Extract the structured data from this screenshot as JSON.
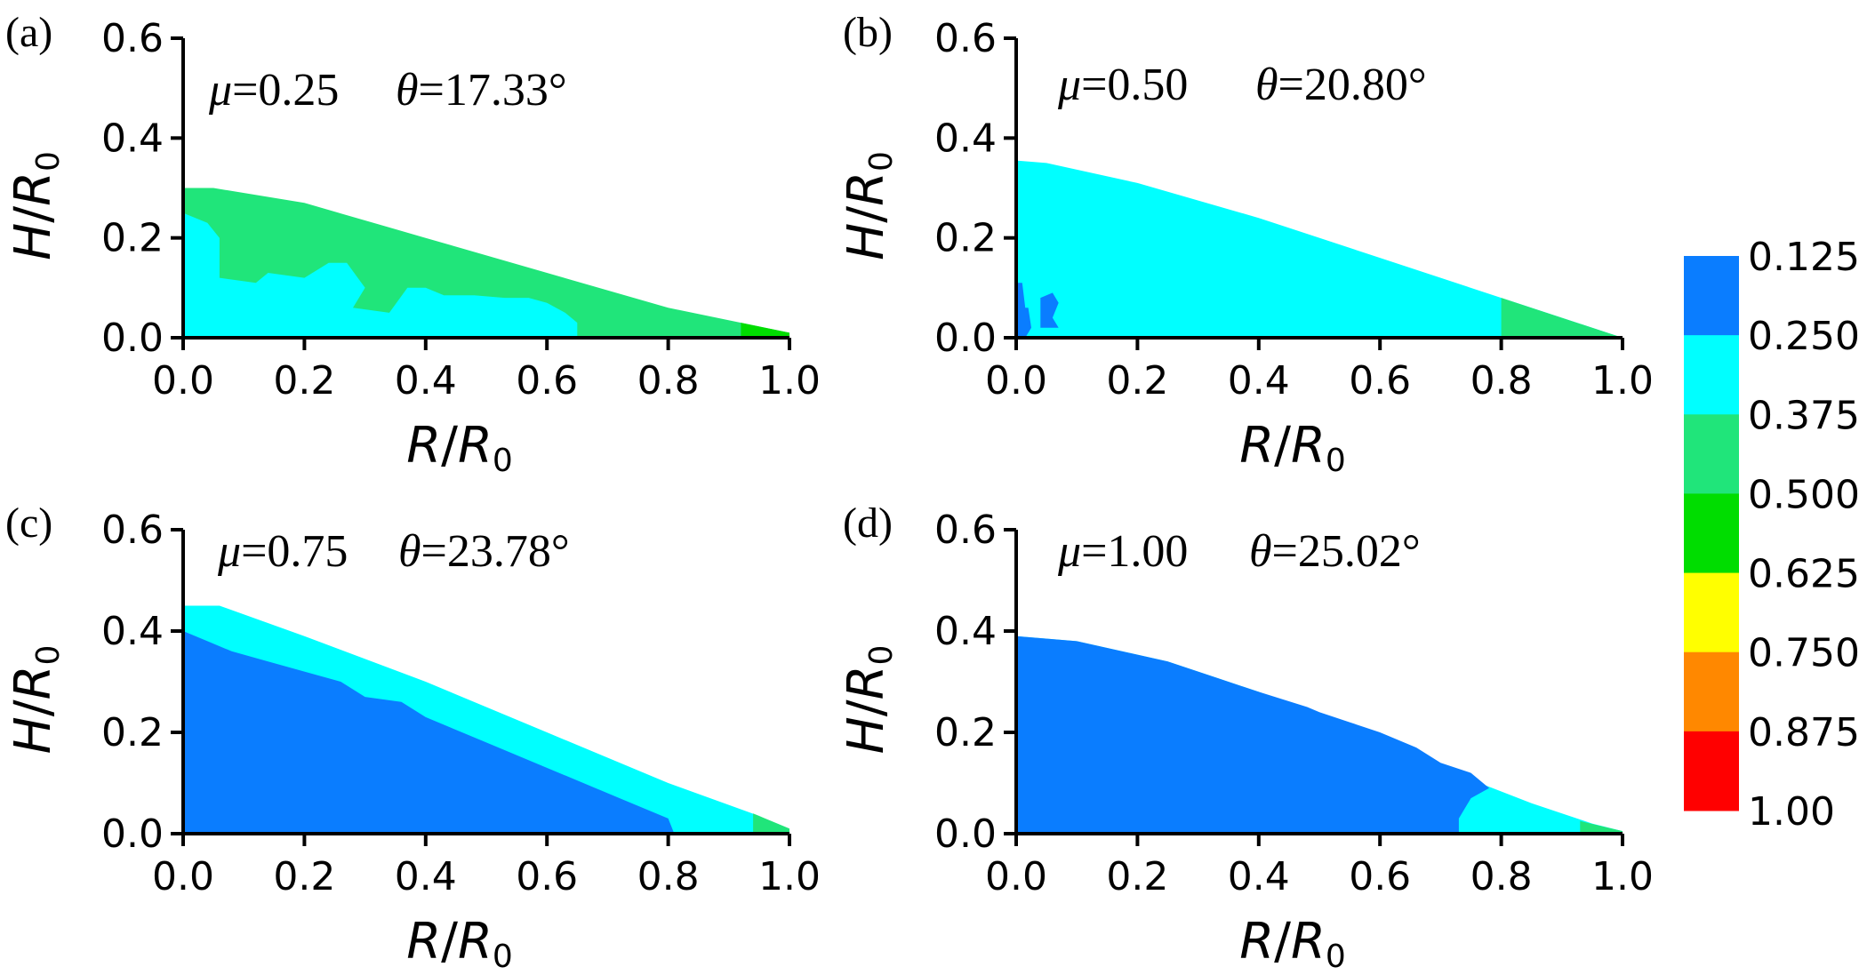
{
  "chart_data": [
    {
      "type": "area",
      "panel_label": "(a)",
      "mu_text": "μ=0.25",
      "theta_text": "θ=17.33°",
      "xlabel": "R/R0",
      "ylabel": "H/R0",
      "xlim": [
        0,
        1.0
      ],
      "ylim": [
        0,
        0.6
      ],
      "x_ticks": [
        "0.0",
        "0.2",
        "0.4",
        "0.6",
        "0.8",
        "1.0"
      ],
      "y_ticks": [
        "0.0",
        "0.2",
        "0.4",
        "0.6"
      ],
      "regions": [
        {
          "color": "#20e57a",
          "points": [
            [
              0,
              0
            ],
            [
              0,
              0.3
            ],
            [
              0.05,
              0.3
            ],
            [
              0.2,
              0.27
            ],
            [
              0.4,
              0.2
            ],
            [
              0.6,
              0.13
            ],
            [
              0.8,
              0.06
            ],
            [
              0.92,
              0.03
            ],
            [
              1.0,
              0.01
            ],
            [
              1.0,
              0
            ]
          ]
        },
        {
          "color": "#00ffff",
          "points": [
            [
              0,
              0
            ],
            [
              0,
              0.25
            ],
            [
              0.04,
              0.23
            ],
            [
              0.06,
              0.2
            ],
            [
              0.06,
              0.12
            ],
            [
              0.12,
              0.11
            ],
            [
              0.14,
              0.13
            ],
            [
              0.2,
              0.12
            ],
            [
              0.24,
              0.15
            ],
            [
              0.27,
              0.15
            ],
            [
              0.3,
              0.1
            ],
            [
              0.28,
              0.06
            ],
            [
              0.34,
              0.05
            ],
            [
              0.37,
              0.1
            ],
            [
              0.4,
              0.1
            ],
            [
              0.43,
              0.085
            ],
            [
              0.48,
              0.085
            ],
            [
              0.53,
              0.08
            ],
            [
              0.57,
              0.08
            ],
            [
              0.6,
              0.07
            ],
            [
              0.63,
              0.05
            ],
            [
              0.65,
              0.03
            ],
            [
              0.65,
              0
            ]
          ]
        },
        {
          "color": "#00dd00",
          "points": [
            [
              0.92,
              0
            ],
            [
              0.92,
              0.03
            ],
            [
              1.0,
              0.01
            ],
            [
              1.0,
              0
            ]
          ]
        }
      ]
    },
    {
      "type": "area",
      "panel_label": "(b)",
      "mu_text": "μ=0.50",
      "theta_text": "θ=20.80°",
      "xlabel": "R/R0",
      "ylabel": "H/R0",
      "xlim": [
        0,
        1.0
      ],
      "ylim": [
        0,
        0.6
      ],
      "x_ticks": [
        "0.0",
        "0.2",
        "0.4",
        "0.6",
        "0.8",
        "1.0"
      ],
      "y_ticks": [
        "0.0",
        "0.2",
        "0.4",
        "0.6"
      ],
      "regions": [
        {
          "color": "#00ffff",
          "points": [
            [
              0,
              0
            ],
            [
              0,
              0.355
            ],
            [
              0.05,
              0.35
            ],
            [
              0.2,
              0.31
            ],
            [
              0.4,
              0.24
            ],
            [
              0.6,
              0.16
            ],
            [
              0.8,
              0.08
            ],
            [
              0.95,
              0.02
            ],
            [
              1.0,
              0
            ]
          ]
        },
        {
          "color": "#20e57a",
          "points": [
            [
              0.7,
              0.12
            ],
            [
              0.8,
              0.08
            ],
            [
              0.95,
              0.02
            ],
            [
              1.0,
              0
            ],
            [
              0.8,
              0
            ],
            [
              0.8,
              0.08
            ]
          ]
        },
        {
          "color": "#0a7dff",
          "points": [
            [
              0.0,
              0.0
            ],
            [
              0.0,
              0.11
            ],
            [
              0.01,
              0.11
            ],
            [
              0.015,
              0.06
            ],
            [
              0.02,
              0.06
            ],
            [
              0.025,
              0.02
            ],
            [
              0.015,
              0.0
            ]
          ]
        },
        {
          "color": "#0a7dff",
          "points": [
            [
              0.04,
              0.02
            ],
            [
              0.04,
              0.08
            ],
            [
              0.06,
              0.09
            ],
            [
              0.07,
              0.07
            ],
            [
              0.06,
              0.04
            ],
            [
              0.07,
              0.02
            ]
          ]
        }
      ]
    },
    {
      "type": "area",
      "panel_label": "(c)",
      "mu_text": "μ=0.75",
      "theta_text": "θ=23.78°",
      "xlabel": "R/R0",
      "ylabel": "H/R0",
      "xlim": [
        0,
        1.0
      ],
      "ylim": [
        0,
        0.6
      ],
      "x_ticks": [
        "0.0",
        "0.2",
        "0.4",
        "0.6",
        "0.8",
        "1.0"
      ],
      "y_ticks": [
        "0.0",
        "0.2",
        "0.4",
        "0.6"
      ],
      "regions": [
        {
          "color": "#00ffff",
          "points": [
            [
              0,
              0
            ],
            [
              0,
              0.45
            ],
            [
              0.06,
              0.45
            ],
            [
              0.2,
              0.39
            ],
            [
              0.4,
              0.3
            ],
            [
              0.6,
              0.2
            ],
            [
              0.8,
              0.1
            ],
            [
              0.95,
              0.035
            ],
            [
              1.0,
              0.005
            ],
            [
              1.0,
              0
            ]
          ]
        },
        {
          "color": "#0a7dff",
          "points": [
            [
              0,
              0
            ],
            [
              0,
              0.4
            ],
            [
              0.04,
              0.38
            ],
            [
              0.08,
              0.36
            ],
            [
              0.14,
              0.34
            ],
            [
              0.2,
              0.32
            ],
            [
              0.26,
              0.3
            ],
            [
              0.3,
              0.27
            ],
            [
              0.36,
              0.26
            ],
            [
              0.4,
              0.23
            ],
            [
              0.46,
              0.2
            ],
            [
              0.5,
              0.18
            ],
            [
              0.56,
              0.15
            ],
            [
              0.62,
              0.12
            ],
            [
              0.68,
              0.09
            ],
            [
              0.72,
              0.07
            ],
            [
              0.76,
              0.05
            ],
            [
              0.8,
              0.03
            ],
            [
              0.81,
              0
            ]
          ]
        },
        {
          "color": "#20e57a",
          "points": [
            [
              0.94,
              0
            ],
            [
              0.94,
              0.04
            ],
            [
              1.0,
              0.01
            ],
            [
              1.0,
              0
            ]
          ]
        }
      ]
    },
    {
      "type": "area",
      "panel_label": "(d)",
      "mu_text": "μ=1.00",
      "theta_text": "θ=25.02°",
      "xlabel": "R/R0",
      "ylabel": "H/R0",
      "xlim": [
        0,
        1.0
      ],
      "ylim": [
        0,
        0.6
      ],
      "x_ticks": [
        "0.0",
        "0.2",
        "0.4",
        "0.6",
        "0.8",
        "1.0"
      ],
      "y_ticks": [
        "0.0",
        "0.2",
        "0.4",
        "0.6"
      ],
      "regions": [
        {
          "color": "#00ffff",
          "points": [
            [
              0,
              0
            ],
            [
              0,
              0.39
            ],
            [
              0.1,
              0.38
            ],
            [
              0.25,
              0.34
            ],
            [
              0.4,
              0.28
            ],
            [
              0.55,
              0.21
            ],
            [
              0.7,
              0.13
            ],
            [
              0.85,
              0.06
            ],
            [
              0.95,
              0.02
            ],
            [
              1.0,
              0.005
            ],
            [
              1.0,
              0
            ]
          ]
        },
        {
          "color": "#0a7dff",
          "points": [
            [
              0,
              0
            ],
            [
              0,
              0.39
            ],
            [
              0.1,
              0.38
            ],
            [
              0.25,
              0.34
            ],
            [
              0.4,
              0.28
            ],
            [
              0.48,
              0.25
            ],
            [
              0.5,
              0.24
            ],
            [
              0.55,
              0.22
            ],
            [
              0.6,
              0.2
            ],
            [
              0.66,
              0.17
            ],
            [
              0.7,
              0.14
            ],
            [
              0.75,
              0.12
            ],
            [
              0.78,
              0.09
            ],
            [
              0.75,
              0.07
            ],
            [
              0.73,
              0.03
            ],
            [
              0.73,
              0
            ]
          ]
        },
        {
          "color": "#20e57a",
          "points": [
            [
              0.93,
              0
            ],
            [
              0.93,
              0.025
            ],
            [
              1.0,
              0.005
            ],
            [
              1.0,
              0
            ]
          ]
        }
      ]
    }
  ],
  "colorbar": {
    "labels": [
      "0.125",
      "0.250",
      "0.375",
      "0.500",
      "0.625",
      "0.750",
      "0.875",
      "1.00"
    ],
    "colors": [
      "#0a7dff",
      "#00ffff",
      "#20e57a",
      "#00dd00",
      "#ffff00",
      "#ff8800",
      "#ff0000"
    ]
  }
}
